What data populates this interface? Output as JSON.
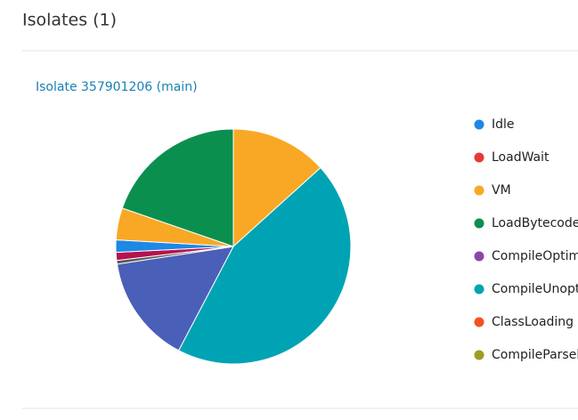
{
  "header": {
    "title": "Isolates (1)"
  },
  "isolate": {
    "link": "Isolate 357901206 (main)"
  },
  "chart_data": {
    "type": "pie",
    "values": [
      13.3,
      44.4,
      14.9,
      0.5,
      1.1,
      1.7,
      4.4,
      19.7
    ],
    "colors": [
      "#f9a825",
      "#00a3b4",
      "#4a5fb8",
      "#5a5a5a",
      "#b5124e",
      "#1e88e5",
      "#f9a825",
      "#0b8f4f"
    ],
    "legend": [
      {
        "name": "Idle",
        "color": "#1e88e5"
      },
      {
        "name": "LoadWait",
        "color": "#e53935"
      },
      {
        "name": "VM",
        "color": "#f9a825"
      },
      {
        "name": "LoadBytecode",
        "color": "#0b8f4f"
      },
      {
        "name": "CompileOptim",
        "color": "#8e44ad"
      },
      {
        "name": "CompileUnopt",
        "color": "#00a3b4"
      },
      {
        "name": "ClassLoading",
        "color": "#f4511e"
      },
      {
        "name": "CompileParsel",
        "color": "#9e9d24"
      }
    ]
  }
}
